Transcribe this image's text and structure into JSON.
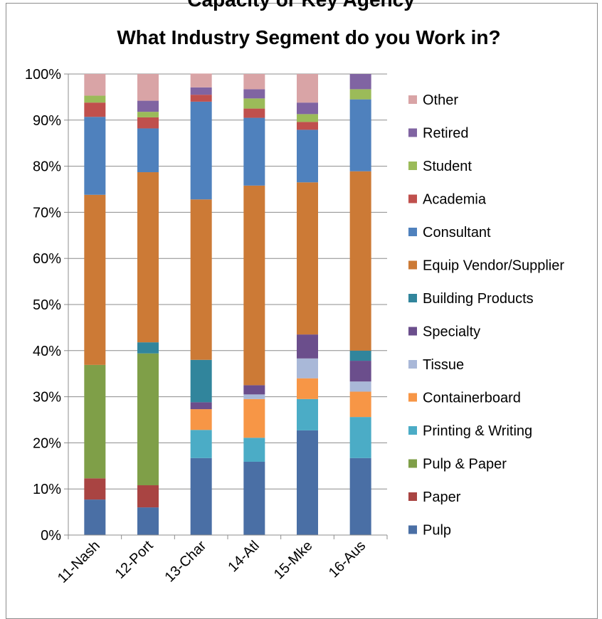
{
  "header_cut_text": "Capacity or Key Agency",
  "chart_data": {
    "type": "bar",
    "stacked": true,
    "percent": true,
    "title": "What Industry Segment do you Work in?",
    "xlabel": "",
    "ylabel": "",
    "ylim": [
      0,
      100
    ],
    "y_ticks": [
      "0%",
      "10%",
      "20%",
      "30%",
      "40%",
      "50%",
      "60%",
      "70%",
      "80%",
      "90%",
      "100%"
    ],
    "categories": [
      "11-Nash",
      "12-Port",
      "13-Char",
      "14-Atl",
      "15-Mke",
      "16-Aus"
    ],
    "legend_position": "right",
    "grid": true,
    "series": [
      {
        "name": "Pulp",
        "color": "#4A6FA5",
        "values": [
          7.7,
          6.0,
          16.7,
          15.9,
          22.7,
          16.7
        ]
      },
      {
        "name": "Paper",
        "color": "#A94442",
        "values": [
          4.6,
          4.8,
          0,
          0,
          0,
          0
        ]
      },
      {
        "name": "Pulp & Paper",
        "color": "#7F9F48",
        "values": [
          24.6,
          28.6,
          0,
          0,
          0,
          0
        ]
      },
      {
        "name": "Printing & Writing",
        "color": "#4BACC6",
        "values": [
          0,
          0,
          6.1,
          5.2,
          6.8,
          8.9
        ]
      },
      {
        "name": "Containerboard",
        "color": "#F79646",
        "values": [
          0,
          0,
          4.5,
          8.4,
          4.5,
          5.5
        ]
      },
      {
        "name": "Tissue",
        "color": "#A9B8D8",
        "values": [
          0,
          0,
          0,
          1.0,
          4.3,
          2.2
        ]
      },
      {
        "name": "Specialty",
        "color": "#6B4E8C",
        "values": [
          0,
          0,
          1.5,
          2.0,
          5.2,
          4.5
        ]
      },
      {
        "name": "Building Products",
        "color": "#31859C",
        "values": [
          0,
          2.4,
          9.2,
          0,
          0,
          2.2
        ]
      },
      {
        "name": "Equip Vendor/Supplier",
        "color": "#CC7A36",
        "values": [
          36.9,
          36.9,
          34.8,
          43.3,
          33.0,
          38.9
        ]
      },
      {
        "name": "Consultant",
        "color": "#4F81BD",
        "values": [
          16.9,
          9.5,
          21.2,
          14.7,
          11.4,
          15.6
        ]
      },
      {
        "name": "Academia",
        "color": "#C0504D",
        "values": [
          3.1,
          2.4,
          1.5,
          2.0,
          1.7,
          0
        ]
      },
      {
        "name": "Student",
        "color": "#9BBB59",
        "values": [
          1.5,
          1.2,
          0,
          2.2,
          1.7,
          2.2
        ]
      },
      {
        "name": "Retired",
        "color": "#8064A2",
        "values": [
          0,
          2.4,
          1.6,
          2.0,
          2.5,
          3.3
        ]
      },
      {
        "name": "Other",
        "color": "#D9A4A6",
        "values": [
          4.7,
          5.8,
          3.0,
          3.3,
          6.2,
          0
        ]
      }
    ]
  }
}
